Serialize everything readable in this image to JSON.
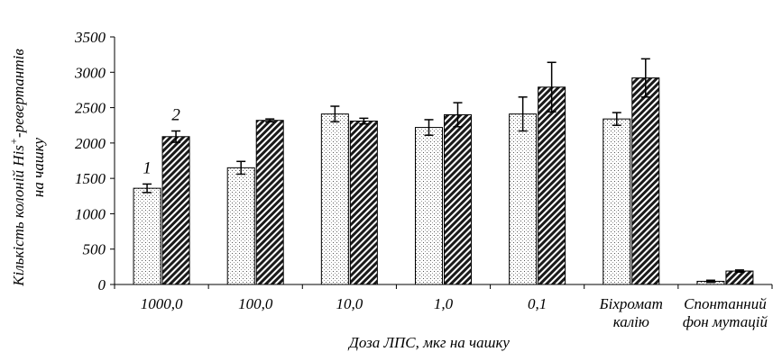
{
  "chart_data": {
    "type": "bar",
    "xlabel": "Доза ЛПС, мкг на чашку",
    "ylabel_line1": "Кількість колоній His",
    "ylabel_sup": "+",
    "ylabel_line1_end": "-ревертантів",
    "ylabel_line2": "на чашку",
    "ylim": [
      0,
      3500
    ],
    "yticks": [
      0,
      500,
      1000,
      1500,
      2000,
      2500,
      3000,
      3500
    ],
    "categories": [
      [
        "1000,0"
      ],
      [
        "100,0"
      ],
      [
        "10,0"
      ],
      [
        "1,0"
      ],
      [
        "0,1"
      ],
      [
        "Біхромат",
        "калію"
      ],
      [
        "Спонтанний",
        "фон мутацій"
      ]
    ],
    "series": [
      {
        "name": "1",
        "values": [
          1360,
          1650,
          2410,
          2220,
          2410,
          2340,
          45
        ],
        "errors": [
          60,
          90,
          110,
          110,
          240,
          90,
          15
        ]
      },
      {
        "name": "2",
        "values": [
          2090,
          2320,
          2310,
          2400,
          2790,
          2920,
          190
        ],
        "errors": [
          80,
          20,
          40,
          170,
          350,
          270,
          15
        ]
      }
    ],
    "series_fill": [
      "dotted-light",
      "hatched-dark"
    ],
    "grid": false,
    "legend": "none"
  }
}
